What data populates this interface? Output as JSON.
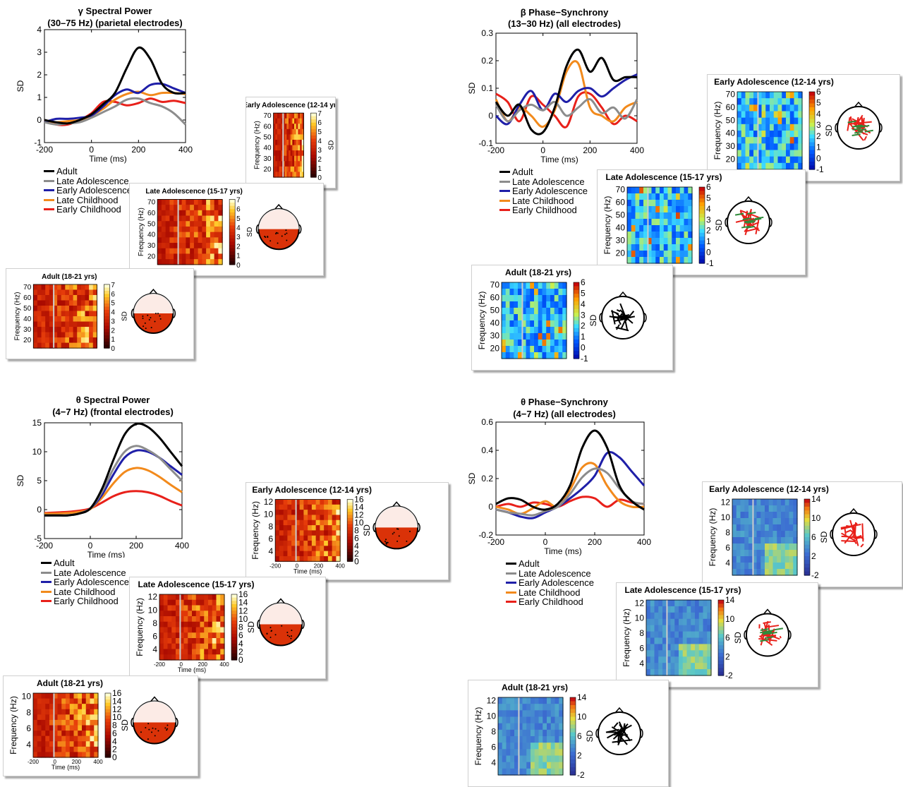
{
  "colors": {
    "Adult": "#000000",
    "Late Adolescence": "#8c8c8c",
    "Early Adolescence": "#1f1fa8",
    "Late Childhood": "#f28a1c",
    "Early Childhood": "#e8201a"
  },
  "panels": [
    {
      "title": "γ Spectral Power",
      "subtitle": "(30–75 Hz) (parietal electrodes)",
      "legend": [
        "Adult",
        "Late Adolescence",
        "Early Adolescence",
        "Late Childhood",
        "Early Childhood"
      ],
      "cards": [
        {
          "title": "Early Adolescence (12-14 yrs)",
          "ylabel": "Frequency (Hz)",
          "yticks": [
            "70",
            "60",
            "50",
            "40",
            "30",
            "20"
          ],
          "cticks": [
            "7",
            "6",
            "5",
            "4",
            "3",
            "2",
            "1",
            "0"
          ],
          "clabel": "SD",
          "hticks": [
            "1",
            "0",
            "-1"
          ],
          "colormap": "hot",
          "head": "hot-topo"
        },
        {
          "title": "Late Adolescence (15-17 yrs)",
          "ylabel": "Frequency (Hz)",
          "yticks": [
            "70",
            "60",
            "50",
            "40",
            "30",
            "20"
          ],
          "cticks": [
            "7",
            "6",
            "5",
            "4",
            "3",
            "2",
            "1",
            "0"
          ],
          "clabel": "SD",
          "hticks": [
            "1",
            "0",
            "-1"
          ],
          "colormap": "hot",
          "head": "hot-topo"
        },
        {
          "title": "Adult (18-21 yrs)",
          "ylabel": "Frequency (Hz)",
          "yticks": [
            "70",
            "60",
            "50",
            "40",
            "30",
            "20"
          ],
          "cticks": [
            "7",
            "6",
            "5",
            "4",
            "3",
            "2",
            "1",
            "0"
          ],
          "clabel": "SD",
          "hticks": [
            "2.5",
            "2",
            "1.5",
            "1",
            "0.5"
          ],
          "colormap": "hot",
          "head": "hot-topo"
        }
      ]
    },
    {
      "title": "β Phase−Synchrony",
      "subtitle": "(13−30 Hz) (all electrodes)",
      "legend": [
        "Adult",
        "Late Adolescence",
        "Early Adolescence",
        "Late Childhood",
        "Early Childhood"
      ],
      "cards": [
        {
          "title": "Early Adolescence (12-14 yrs)",
          "ylabel": "Frequency (Hz)",
          "yticks": [
            "70",
            "60",
            "50",
            "40",
            "30",
            "20"
          ],
          "cticks": [
            "6",
            "5",
            "4",
            "3",
            "2",
            "1",
            "0",
            "-1"
          ],
          "clabel": "SD",
          "colormap": "jet",
          "head": "network-red-green"
        },
        {
          "title": "Late Adolescence (15-17 yrs)",
          "ylabel": "Frequency (Hz)",
          "yticks": [
            "70",
            "60",
            "50",
            "40",
            "30",
            "20"
          ],
          "cticks": [
            "6",
            "5",
            "4",
            "3",
            "2",
            "1",
            "0",
            "-1"
          ],
          "clabel": "SD",
          "colormap": "jet",
          "head": "network-red-green"
        },
        {
          "title": "Adult (18-21 yrs)",
          "ylabel": "Frequency (Hz)",
          "yticks": [
            "70",
            "60",
            "50",
            "40",
            "30",
            "20"
          ],
          "cticks": [
            "6",
            "5",
            "4",
            "3",
            "2",
            "1",
            "0",
            "-1"
          ],
          "clabel": "SD",
          "colormap": "jet",
          "head": "network-black"
        }
      ]
    },
    {
      "title": "θ Spectral Power",
      "subtitle": "(4−7 Hz) (frontal electrodes)",
      "legend": [
        "Adult",
        "Late Adolescence",
        "Early Adolescence",
        "Late Childhood",
        "Early Childhood"
      ],
      "cards": [
        {
          "title": "Early Adolescence (12-14 yrs)",
          "ylabel": "Frequency (Hz)",
          "yticks": [
            "12",
            "10",
            "8",
            "6",
            "4"
          ],
          "xticks": [
            "-200",
            "0",
            "200",
            "400"
          ],
          "xlabel": "Time (ms)",
          "cticks": [
            "16",
            "14",
            "12",
            "10",
            "8",
            "6",
            "4",
            "2",
            "0"
          ],
          "clabel": "SD",
          "hticks": [
            "5",
            "0",
            "-5"
          ],
          "colormap": "hot",
          "head": "hot-topo"
        },
        {
          "title": "Late Adolescence (15-17 yrs)",
          "ylabel": "Frequency (Hz)",
          "yticks": [
            "12",
            "10",
            "8",
            "6",
            "4"
          ],
          "xticks": [
            "-200",
            "0",
            "200",
            "400"
          ],
          "xlabel": "Time (ms)",
          "cticks": [
            "16",
            "14",
            "12",
            "10",
            "8",
            "6",
            "4",
            "2",
            "0"
          ],
          "clabel": "SD",
          "hticks": [
            "5",
            "0",
            "-5"
          ],
          "colormap": "hot",
          "head": "hot-topo"
        },
        {
          "title": "Adult (18-21 yrs)",
          "ylabel": "Frequency (Hz)",
          "yticks": [
            "10",
            "8",
            "6",
            "4"
          ],
          "xticks": [
            "-200",
            "0",
            "200",
            "400"
          ],
          "xlabel": "Time (ms)",
          "cticks": [
            "16",
            "14",
            "12",
            "10",
            "8",
            "6",
            "4",
            "2",
            "0"
          ],
          "clabel": "SD",
          "hticks": [
            "10",
            "8",
            "6",
            "4",
            "2"
          ],
          "colormap": "hot",
          "head": "hot-topo"
        }
      ]
    },
    {
      "title": "θ Phase−Synchrony",
      "subtitle": "(4−7 Hz) (all electrodes)",
      "legend": [
        "Adult",
        "Late Adolescence",
        "Early Adolescence",
        "Late Childhood",
        "Early Childhood"
      ],
      "cards": [
        {
          "title": "Early Adolescence (12-14 yrs)",
          "ylabel": "Frequency (Hz)",
          "yticks": [
            "12",
            "10",
            "8",
            "6",
            "4"
          ],
          "cticks": [
            "14",
            "10",
            "6",
            "2",
            "-2"
          ],
          "clabel": "SD",
          "colormap": "parula",
          "head": "network-red"
        },
        {
          "title": "Late Adolescence (15-17 yrs)",
          "ylabel": "Frequency (Hz)",
          "yticks": [
            "12",
            "10",
            "8",
            "6",
            "4"
          ],
          "cticks": [
            "14",
            "10",
            "6",
            "2",
            "-2"
          ],
          "clabel": "SD",
          "colormap": "parula",
          "head": "network-red-green"
        },
        {
          "title": "Adult (18-21 yrs)",
          "ylabel": "Frequency (Hz)",
          "yticks": [
            "12",
            "10",
            "8",
            "6",
            "4"
          ],
          "cticks": [
            "14",
            "10",
            "6",
            "2",
            "-2"
          ],
          "clabel": "SD",
          "colormap": "parula",
          "head": "network-black"
        }
      ]
    }
  ],
  "chart_data": [
    {
      "type": "line",
      "title": "γ Spectral Power",
      "subtitle": "(30–75 Hz) (parietal electrodes)",
      "xlabel": "Time (ms)",
      "ylabel": "SD",
      "xlim": [
        -200,
        400
      ],
      "ylim": [
        -1,
        4
      ],
      "xticks": [
        -200,
        0,
        200,
        400
      ],
      "yticks": [
        -1,
        0,
        1,
        2,
        3,
        4
      ],
      "x": [
        -200,
        -150,
        -100,
        -50,
        0,
        50,
        100,
        150,
        200,
        250,
        300,
        350,
        400
      ],
      "series": [
        {
          "name": "Adult",
          "values": [
            0.0,
            -0.1,
            -0.15,
            0.0,
            0.25,
            0.7,
            1.2,
            2.3,
            3.2,
            2.7,
            1.6,
            1.2,
            1.2
          ]
        },
        {
          "name": "Late Adolescence",
          "values": [
            -0.1,
            -0.2,
            -0.15,
            -0.1,
            0.1,
            0.35,
            0.6,
            0.9,
            0.95,
            0.75,
            0.6,
            0.3,
            -0.2
          ]
        },
        {
          "name": "Early Adolescence",
          "values": [
            -0.1,
            0.05,
            0.05,
            0.1,
            0.2,
            0.6,
            1.1,
            1.35,
            1.2,
            1.55,
            1.6,
            1.4,
            1.2
          ]
        },
        {
          "name": "Late Childhood",
          "values": [
            -0.05,
            -0.1,
            -0.05,
            0.0,
            0.2,
            0.5,
            0.9,
            1.15,
            1.25,
            1.1,
            1.2,
            1.2,
            1.15
          ]
        },
        {
          "name": "Early Childhood",
          "values": [
            0.0,
            -0.2,
            -0.2,
            0.0,
            0.3,
            0.8,
            0.8,
            0.65,
            0.75,
            0.95,
            0.8,
            0.85,
            0.75
          ]
        }
      ]
    },
    {
      "type": "line",
      "title": "β Phase−Synchrony",
      "subtitle": "(13−30 Hz) (all electrodes)",
      "xlabel": "Time (ms)",
      "ylabel": "SD",
      "xlim": [
        -200,
        400
      ],
      "ylim": [
        -0.1,
        0.3
      ],
      "xticks": [
        -200,
        0,
        200,
        400
      ],
      "yticks": [
        -0.1,
        0,
        0.1,
        0.2,
        0.3
      ],
      "x": [
        -200,
        -150,
        -100,
        -50,
        0,
        50,
        100,
        150,
        200,
        250,
        300,
        350,
        400
      ],
      "series": [
        {
          "name": "Adult",
          "values": [
            0.05,
            0.0,
            0.04,
            -0.05,
            -0.06,
            0.03,
            0.18,
            0.24,
            0.16,
            0.21,
            0.13,
            0.14,
            0.14
          ]
        },
        {
          "name": "Late Adolescence",
          "values": [
            0.04,
            -0.02,
            0.02,
            0.04,
            0.02,
            0.05,
            0.0,
            0.03,
            0.06,
            0.01,
            0.03,
            -0.01,
            0.06
          ]
        },
        {
          "name": "Early Adolescence",
          "values": [
            0.0,
            -0.03,
            0.04,
            0.09,
            0.02,
            0.08,
            0.05,
            0.09,
            0.1,
            0.07,
            0.1,
            0.13,
            0.15
          ]
        },
        {
          "name": "Late Childhood",
          "values": [
            0.06,
            -0.02,
            0.03,
            0.0,
            -0.04,
            0.02,
            0.16,
            0.19,
            0.03,
            0.0,
            -0.02,
            0.03,
            0.05
          ]
        },
        {
          "name": "Early Childhood",
          "values": [
            0.08,
            0.05,
            -0.02,
            0.07,
            0.04,
            0.0,
            -0.04,
            0.07,
            0.08,
            0.03,
            -0.03,
            0.0,
            -0.02
          ]
        }
      ]
    },
    {
      "type": "line",
      "title": "θ Spectral Power",
      "subtitle": "(4−7 Hz) (frontal electrodes)",
      "xlabel": "Time (ms)",
      "ylabel": "SD",
      "xlim": [
        -200,
        400
      ],
      "ylim": [
        -5,
        15
      ],
      "xticks": [
        -200,
        0,
        200,
        400
      ],
      "yticks": [
        -5,
        0,
        5,
        10,
        15
      ],
      "x": [
        -200,
        -150,
        -100,
        -50,
        0,
        50,
        100,
        150,
        200,
        250,
        300,
        350,
        400
      ],
      "series": [
        {
          "name": "Adult",
          "values": [
            -1.0,
            -1.0,
            -1.0,
            -0.7,
            0.2,
            3.5,
            8.5,
            13.0,
            14.8,
            14.3,
            12.5,
            10.0,
            7.5
          ]
        },
        {
          "name": "Late Adolescence",
          "values": [
            -1.0,
            -1.0,
            -1.0,
            -0.7,
            0.2,
            3.0,
            7.0,
            10.0,
            11.0,
            10.3,
            9.0,
            7.0,
            5.0
          ]
        },
        {
          "name": "Early Adolescence",
          "values": [
            -1.0,
            -1.0,
            -1.0,
            -0.7,
            0.2,
            2.5,
            6.0,
            9.0,
            10.2,
            10.0,
            9.0,
            7.5,
            6.0
          ]
        },
        {
          "name": "Late Childhood",
          "values": [
            -0.7,
            -0.7,
            -0.6,
            -0.4,
            0.1,
            2.0,
            4.5,
            6.5,
            7.2,
            6.8,
            5.7,
            4.3,
            3.0
          ]
        },
        {
          "name": "Early Childhood",
          "values": [
            -0.6,
            -0.5,
            -0.4,
            -0.2,
            0.2,
            1.2,
            2.3,
            3.0,
            3.2,
            3.0,
            2.4,
            1.5,
            0.7
          ]
        }
      ]
    },
    {
      "type": "line",
      "title": "θ Phase−Synchrony",
      "subtitle": "(4−7 Hz) (all electrodes)",
      "xlabel": "Time (ms)",
      "ylabel": "SD",
      "xlim": [
        -200,
        400
      ],
      "ylim": [
        -0.2,
        0.6
      ],
      "xticks": [
        -200,
        0,
        200,
        400
      ],
      "yticks": [
        -0.2,
        0,
        0.2,
        0.4,
        0.6
      ],
      "x": [
        -200,
        -150,
        -100,
        -50,
        0,
        50,
        100,
        150,
        200,
        250,
        300,
        350,
        400
      ],
      "series": [
        {
          "name": "Adult",
          "values": [
            0.02,
            0.06,
            0.05,
            0.0,
            -0.02,
            0.02,
            0.15,
            0.42,
            0.54,
            0.42,
            0.15,
            0.04,
            -0.02
          ]
        },
        {
          "name": "Late Adolescence",
          "values": [
            -0.02,
            -0.04,
            -0.05,
            -0.06,
            -0.03,
            0.0,
            0.09,
            0.21,
            0.27,
            0.24,
            0.13,
            0.04,
            0.02
          ]
        },
        {
          "name": "Early Adolescence",
          "values": [
            -0.02,
            -0.04,
            -0.07,
            -0.08,
            -0.04,
            0.0,
            0.06,
            0.13,
            0.22,
            0.38,
            0.35,
            0.25,
            0.15
          ]
        },
        {
          "name": "Late Childhood",
          "values": [
            0.0,
            -0.02,
            -0.05,
            -0.01,
            0.04,
            0.0,
            0.12,
            0.28,
            0.3,
            0.15,
            0.04,
            0.0,
            0.0
          ]
        },
        {
          "name": "Early Childhood",
          "values": [
            0.0,
            0.02,
            0.0,
            0.03,
            0.02,
            0.0,
            0.04,
            0.07,
            0.06,
            0.0,
            0.05,
            0.03,
            0.02
          ]
        }
      ]
    }
  ]
}
